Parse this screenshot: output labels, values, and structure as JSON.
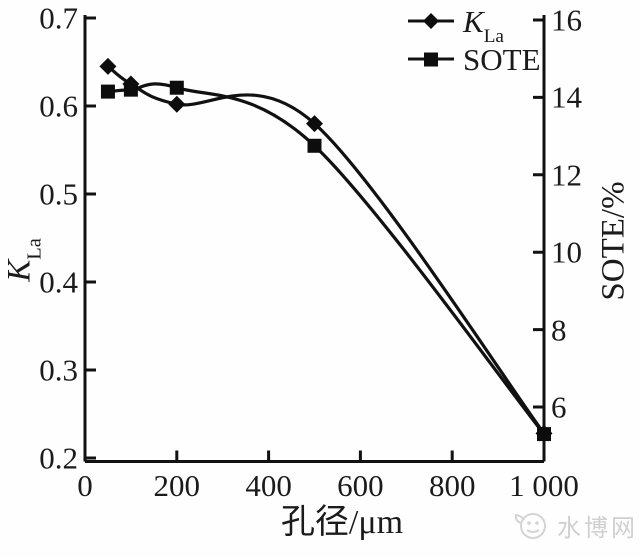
{
  "legend": {
    "items": [
      {
        "label_main": "K",
        "label_sub": "La",
        "marker": "diamond"
      },
      {
        "label": "SOTE",
        "marker": "square"
      }
    ]
  },
  "axes": {
    "left": {
      "title_main": "K",
      "title_sub": "La",
      "ticks": [
        "0.7",
        "0.6",
        "0.5",
        "0.4",
        "0.3",
        "0.2"
      ]
    },
    "right": {
      "title": "SOTE/%",
      "ticks": [
        "16",
        "14",
        "12",
        "10",
        "8",
        "6"
      ]
    },
    "x": {
      "title": "孔径/μm",
      "ticks": [
        "0",
        "200",
        "400",
        "600",
        "800",
        "1 000"
      ]
    }
  },
  "watermark": {
    "text": "水博网"
  },
  "chart_data": {
    "type": "line",
    "x": [
      50,
      100,
      200,
      500,
      1000
    ],
    "xlabel": "孔径/μm",
    "x_tick_values": [
      0,
      200,
      400,
      600,
      800,
      1000
    ],
    "xlim": [
      0,
      1000
    ],
    "series": [
      {
        "name": "K_La",
        "axis": "left",
        "marker": "diamond",
        "values": [
          0.645,
          0.625,
          0.602,
          0.58,
          0.228
        ]
      },
      {
        "name": "SOTE",
        "axis": "right",
        "marker": "square",
        "values": [
          14.15,
          14.2,
          14.25,
          12.75,
          5.3
        ]
      }
    ],
    "left_axis_label": "K_La",
    "right_axis_label": "SOTE/%",
    "left_ticks": [
      0.7,
      0.6,
      0.5,
      0.4,
      0.3,
      0.2
    ],
    "right_ticks": [
      16,
      14,
      12,
      10,
      8,
      6
    ],
    "left_ylim": [
      0.2,
      0.7
    ],
    "right_ylim": [
      4.6,
      16.1
    ],
    "grid": false,
    "legend_position": "top-right",
    "line_style": "smooth-spline",
    "color": "#111111"
  }
}
